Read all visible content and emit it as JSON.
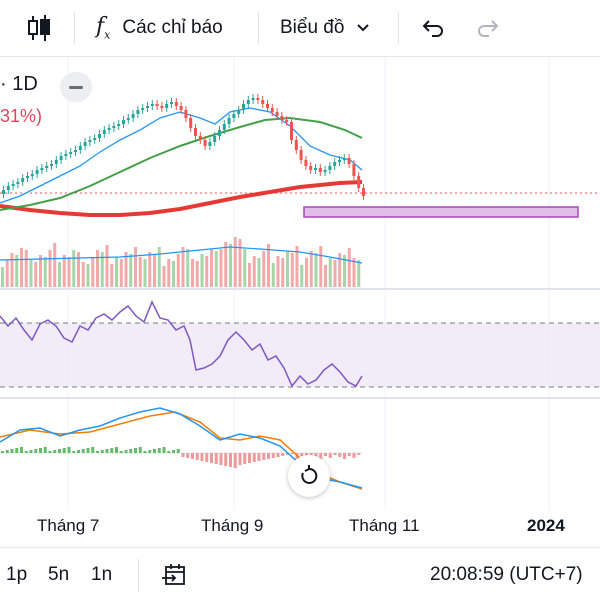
{
  "toolbar": {
    "candles_icon": "candlestick-icon",
    "indicators_label": "Các chỉ báo",
    "chart_type_label": "Biểu đồ",
    "undo_icon": "undo-icon",
    "redo_icon": "redo-icon"
  },
  "legend": {
    "interval": "· 1D",
    "change_pct": "31%)"
  },
  "time_axis": {
    "labels": [
      "Tháng 7",
      "Tháng 9",
      "Tháng 11",
      "2024"
    ]
  },
  "bottom_bar": {
    "ranges": [
      "1p",
      "5n",
      "1n"
    ],
    "goto_icon": "calendar-goto-icon",
    "clock": "20:08:59 (UTC+7)"
  },
  "colors": {
    "up": "#26a69a",
    "down": "#ef5350",
    "ma_fast": "#2196f3",
    "ma_mid": "#43a047",
    "ma_slow": "#e53935",
    "rsi": "#7e57c2",
    "macd_signal": "#f57c00"
  }
}
